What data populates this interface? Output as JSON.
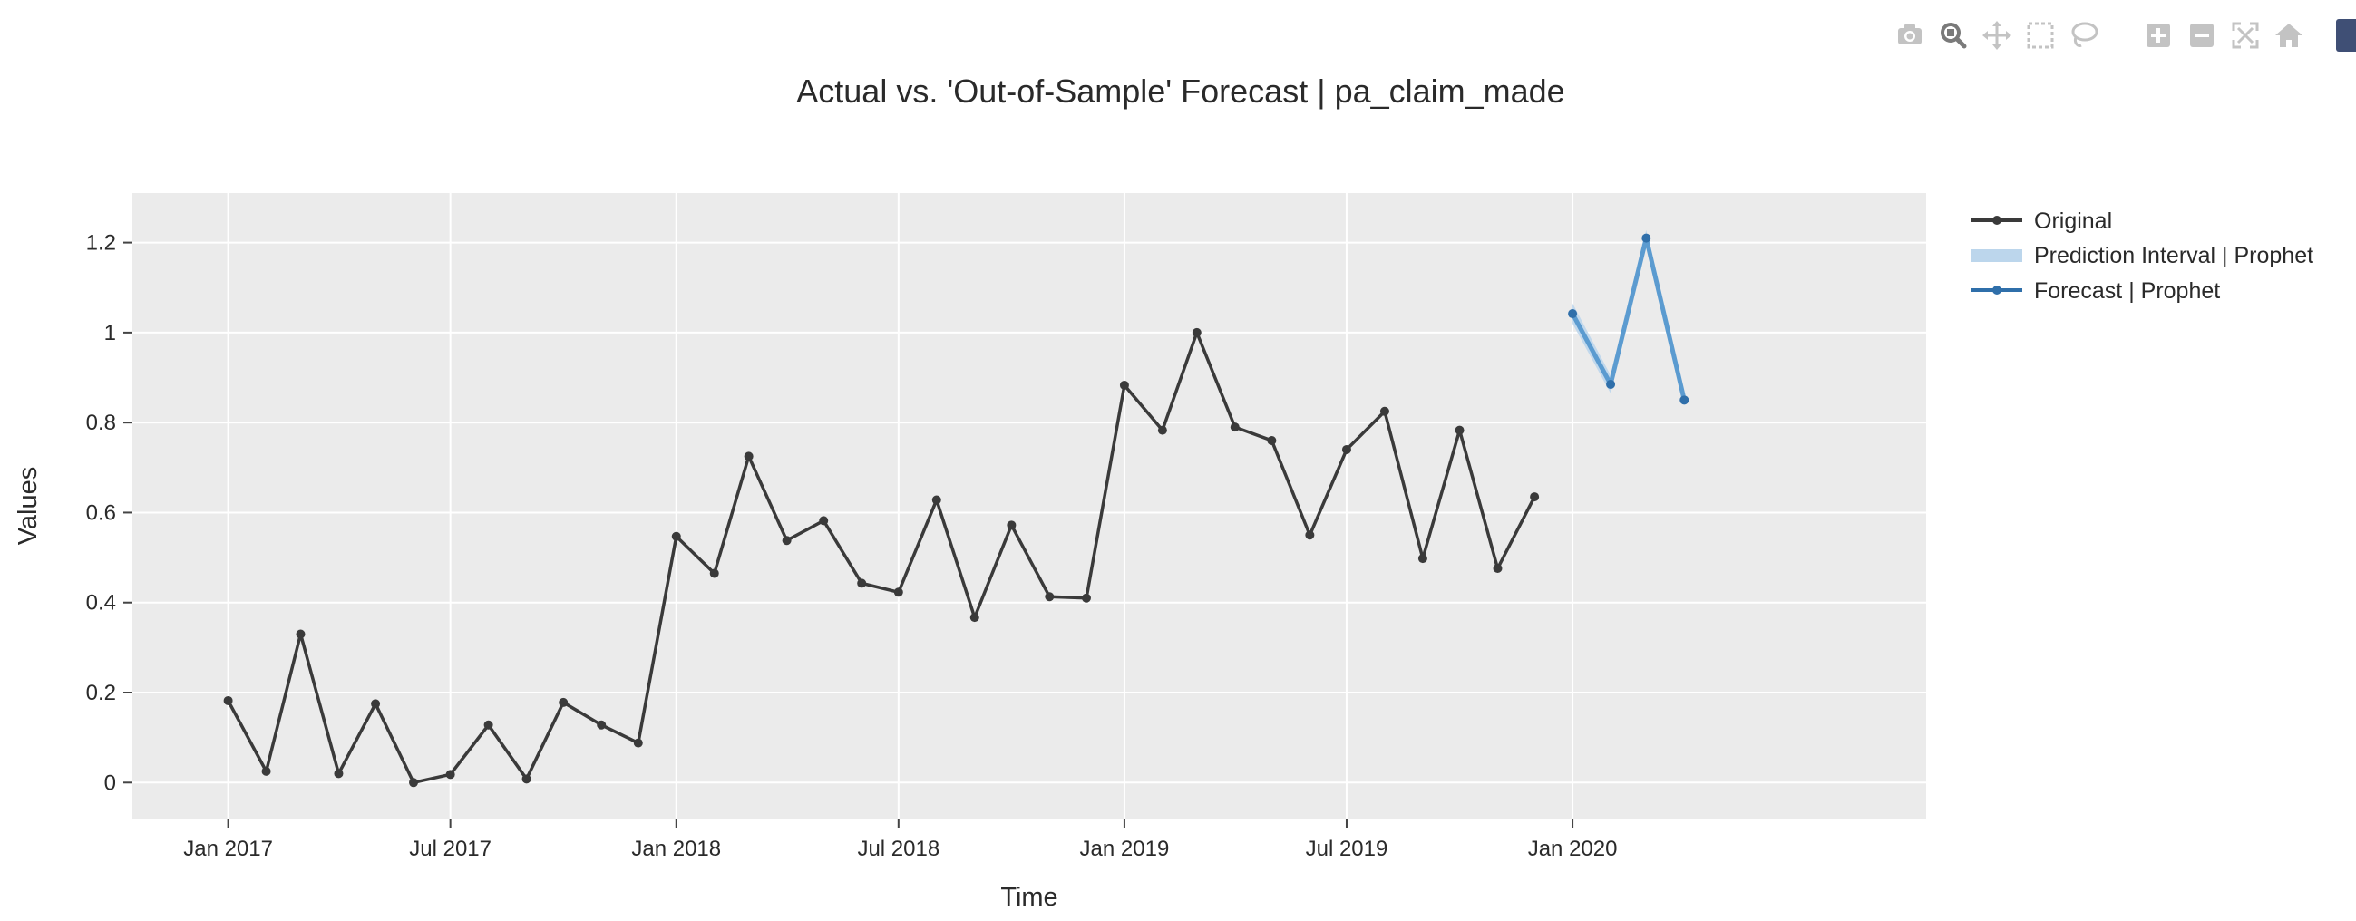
{
  "modebar": {
    "buttons": [
      {
        "name": "camera-icon",
        "title": "Download plot as a png"
      },
      {
        "name": "zoom-icon",
        "title": "Zoom"
      },
      {
        "name": "pan-icon",
        "title": "Pan"
      },
      {
        "name": "box-select-icon",
        "title": "Box Select"
      },
      {
        "name": "lasso-icon",
        "title": "Lasso Select"
      },
      {
        "name": "zoom-in-icon",
        "title": "Zoom in"
      },
      {
        "name": "zoom-out-icon",
        "title": "Zoom out"
      },
      {
        "name": "autoscale-icon",
        "title": "Autoscale"
      },
      {
        "name": "home-icon",
        "title": "Reset axes"
      }
    ],
    "icon_color": "#c3c3c3",
    "active_color": "#7a7a7a"
  },
  "chart_data": {
    "type": "line",
    "title": "Actual vs. 'Out-of-Sample' Forecast | pa_claim_made",
    "xlabel": "Time",
    "ylabel": "Values",
    "xlim": [
      "2016-10-15",
      "2020-10-15"
    ],
    "ylim": [
      -0.08,
      1.31
    ],
    "x_ticks": [
      {
        "date": "2017-01-01",
        "label": "Jan 2017"
      },
      {
        "date": "2017-07-01",
        "label": "Jul 2017"
      },
      {
        "date": "2018-01-01",
        "label": "Jan 2018"
      },
      {
        "date": "2018-07-01",
        "label": "Jul 2018"
      },
      {
        "date": "2019-01-01",
        "label": "Jan 2019"
      },
      {
        "date": "2019-07-01",
        "label": "Jul 2019"
      },
      {
        "date": "2020-01-01",
        "label": "Jan 2020"
      }
    ],
    "y_ticks": [
      {
        "value": 0,
        "label": "0"
      },
      {
        "value": 0.2,
        "label": "0.2"
      },
      {
        "value": 0.4,
        "label": "0.4"
      },
      {
        "value": 0.6,
        "label": "0.6"
      },
      {
        "value": 0.8,
        "label": "0.8"
      },
      {
        "value": 1,
        "label": "1"
      },
      {
        "value": 1.2,
        "label": "1.2"
      }
    ],
    "grid": true,
    "legend_position": "top-right",
    "plot_bg": "#ebebeb",
    "grid_color": "#ffffff",
    "series": [
      {
        "name": "Original",
        "color": "#3a3a3a",
        "x": [
          "2017-01-01",
          "2017-02-01",
          "2017-03-01",
          "2017-04-01",
          "2017-05-01",
          "2017-06-01",
          "2017-07-01",
          "2017-08-01",
          "2017-09-01",
          "2017-10-01",
          "2017-11-01",
          "2017-12-01",
          "2018-01-01",
          "2018-02-01",
          "2018-03-01",
          "2018-04-01",
          "2018-05-01",
          "2018-06-01",
          "2018-07-01",
          "2018-08-01",
          "2018-09-01",
          "2018-10-01",
          "2018-11-01",
          "2018-12-01",
          "2019-01-01",
          "2019-02-01",
          "2019-03-01",
          "2019-04-01",
          "2019-05-01",
          "2019-06-01",
          "2019-07-01",
          "2019-08-01",
          "2019-09-01",
          "2019-10-01",
          "2019-11-01",
          "2019-12-01"
        ],
        "y": [
          0.182,
          0.025,
          0.33,
          0.02,
          0.175,
          0.0,
          0.018,
          0.128,
          0.008,
          0.178,
          0.128,
          0.088,
          0.547,
          0.465,
          0.725,
          0.538,
          0.582,
          0.443,
          0.423,
          0.628,
          0.367,
          0.572,
          0.413,
          0.41,
          0.883,
          0.783,
          1.0,
          0.79,
          0.76,
          0.55,
          0.74,
          0.825,
          0.498,
          0.783,
          0.476,
          0.635
        ]
      },
      {
        "name": "Forecast | Prophet",
        "color": "#2f6faa",
        "line_color": "#5b9bd0",
        "x": [
          "2020-01-01",
          "2020-02-01",
          "2020-03-01",
          "2020-04-01"
        ],
        "y": [
          1.042,
          0.885,
          1.21,
          0.85
        ]
      }
    ],
    "interval": {
      "name": "Prediction Interval | Prophet",
      "color": "#bcd6ec",
      "x": [
        "2020-01-01",
        "2020-02-01",
        "2020-03-01",
        "2020-04-01"
      ],
      "upper": [
        1.065,
        0.905,
        1.228,
        0.862
      ],
      "lower": [
        1.02,
        0.865,
        1.195,
        0.84
      ]
    }
  }
}
